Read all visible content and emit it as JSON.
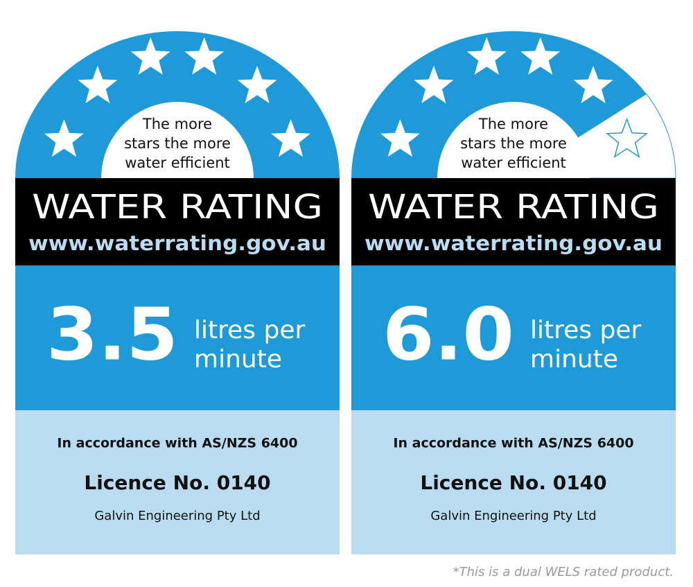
{
  "labels": [
    {
      "tagline": [
        "The more",
        "stars the more",
        "water efficient"
      ],
      "title": "WATER RATING",
      "url": "www.waterrating.gov.au",
      "stars": 6,
      "max_stars": 6,
      "flow": "3.5",
      "unit": [
        "litres per",
        "minute"
      ],
      "standard": "In accordance with AS/NZS 6400",
      "licence": "Licence No. 0140",
      "company": "Galvin Engineering Pty Ltd"
    },
    {
      "tagline": [
        "The more",
        "stars the more",
        "water efficient"
      ],
      "title": "WATER RATING",
      "url": "www.waterrating.gov.au",
      "stars": 5,
      "max_stars": 6,
      "flow": "6.0",
      "unit": [
        "litres per",
        "minute"
      ],
      "standard": "In accordance with AS/NZS 6400",
      "licence": "Licence No. 0140",
      "company": "Galvin Engineering Pty Ltd"
    }
  ],
  "footnote": "*This is a dual WELS rated product."
}
